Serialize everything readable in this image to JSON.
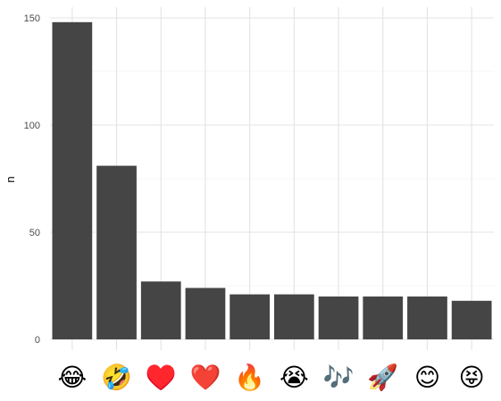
{
  "chart_data": {
    "type": "bar",
    "title": "",
    "xlabel": "",
    "ylabel": "n",
    "ylim": [
      0,
      155
    ],
    "yticks": [
      0,
      50,
      100,
      150
    ],
    "grid": true,
    "bar_color": "#454545",
    "categories": [
      "😂",
      "🤣",
      "♥️",
      "❤️",
      "🔥",
      "😭",
      "🎶",
      "🚀",
      "😊",
      "😝"
    ],
    "values": [
      148,
      81,
      27,
      24,
      21,
      21,
      20,
      20,
      20,
      18
    ]
  }
}
